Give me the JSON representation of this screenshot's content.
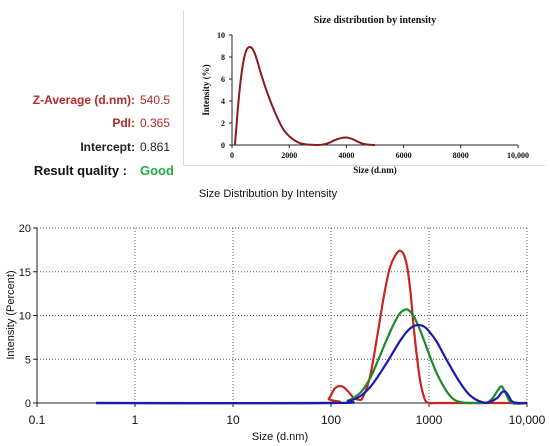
{
  "summary": {
    "z_average": {
      "label": "Z-Average (d.nm):",
      "value": "540.5"
    },
    "pdi": {
      "label": "PdI:",
      "value": "0.365"
    },
    "intercept": {
      "label": "Intercept:",
      "value": "0.861"
    },
    "result_quality": {
      "label": "Result quality :",
      "value": "Good"
    }
  },
  "colors": {
    "red": "#cc2222",
    "green": "#1a8a2a",
    "blue": "#1a1ab0",
    "dark_red": "#8b1a1a",
    "label_red": "#b22a2a",
    "label_green": "#22aa44"
  },
  "chart_data": [
    {
      "type": "line",
      "title": "Size distribution by intensity",
      "xlabel": "Size (d.nm)",
      "ylabel": "Intensity (%)",
      "xlim": [
        0,
        10000
      ],
      "ylim": [
        0,
        10
      ],
      "x_ticks": [
        "0",
        "2000",
        "4000",
        "6000",
        "8000",
        "10,000"
      ],
      "y_ticks": [
        "0",
        "2",
        "4",
        "6",
        "8",
        "10"
      ],
      "grid": false,
      "series": [
        {
          "color": "#8b1a1a",
          "x": [
            100,
            150,
            200,
            300,
            400,
            500,
            600,
            700,
            800,
            900,
            1000,
            1200,
            1400,
            1600,
            1800,
            2000,
            2200,
            2400,
            2600,
            2800,
            3000,
            3200,
            3400,
            3600,
            3800,
            4000,
            4200,
            4400,
            4600,
            4800,
            5000
          ],
          "y": [
            0,
            1.5,
            3.2,
            5.8,
            7.6,
            8.6,
            8.9,
            8.8,
            8.3,
            7.5,
            6.6,
            5.0,
            3.6,
            2.4,
            1.4,
            0.8,
            0.4,
            0.15,
            0.05,
            0.02,
            0,
            0.05,
            0.2,
            0.45,
            0.62,
            0.68,
            0.55,
            0.3,
            0.1,
            0.02,
            0
          ]
        }
      ]
    },
    {
      "type": "line",
      "title": "Size Distribution by Intensity",
      "xlabel": "Size (d.nm)",
      "ylabel": "Intensity (Percent)",
      "xscale": "log",
      "xlim": [
        0.1,
        10000
      ],
      "ylim": [
        0,
        20
      ],
      "x_ticks": [
        "0.1",
        "1",
        "10",
        "100",
        "1000",
        "10,000"
      ],
      "y_ticks": [
        "0",
        "5",
        "10",
        "15",
        "20"
      ],
      "grid": true,
      "series": [
        {
          "color": "#cc2222",
          "x": [
            0.4,
            80,
            95,
            110,
            130,
            150,
            170,
            190,
            210,
            250,
            300,
            350,
            400,
            450,
            500,
            550,
            600,
            650,
            700,
            800,
            900,
            1000,
            1200,
            5000,
            10000
          ],
          "y": [
            0,
            0,
            0.5,
            1.7,
            1.9,
            1.3,
            0.6,
            0.4,
            0.6,
            3,
            8,
            12.5,
            15.5,
            16.8,
            17.4,
            17.0,
            15.5,
            12.5,
            8.5,
            3,
            0.5,
            0,
            0,
            0,
            0
          ]
        },
        {
          "color": "#1a8a2a",
          "x": [
            0.4,
            100,
            150,
            200,
            250,
            300,
            350,
            400,
            450,
            500,
            550,
            600,
            650,
            700,
            800,
            900,
            1000,
            1200,
            1500,
            1800,
            2200,
            2800,
            3500,
            4000,
            4500,
            5000,
            5500,
            6000,
            7000,
            10000
          ],
          "y": [
            0,
            0,
            0.3,
            1.2,
            2.8,
            4.8,
            6.6,
            8.1,
            9.3,
            10.2,
            10.6,
            10.7,
            10.4,
            9.9,
            8.5,
            7.0,
            5.6,
            3.4,
            1.4,
            0.4,
            0.05,
            0,
            0,
            0.1,
            0.6,
            1.4,
            1.9,
            1.2,
            0,
            0
          ]
        },
        {
          "color": "#1a1ab0",
          "x": [
            0.4,
            100,
            150,
            200,
            250,
            300,
            400,
            500,
            600,
            700,
            800,
            900,
            1000,
            1200,
            1500,
            2000,
            2500,
            3000,
            3500,
            4000,
            5000,
            5500,
            6000,
            6500,
            7000,
            8000,
            10000
          ],
          "y": [
            0,
            0,
            0.2,
            0.8,
            1.8,
            3.0,
            5.2,
            7.0,
            8.2,
            8.8,
            8.9,
            8.7,
            8.2,
            7.0,
            5.0,
            2.6,
            1.1,
            0.4,
            0.1,
            0.05,
            0.6,
            1.2,
            1.3,
            0.8,
            0.2,
            0,
            0
          ]
        }
      ]
    }
  ]
}
